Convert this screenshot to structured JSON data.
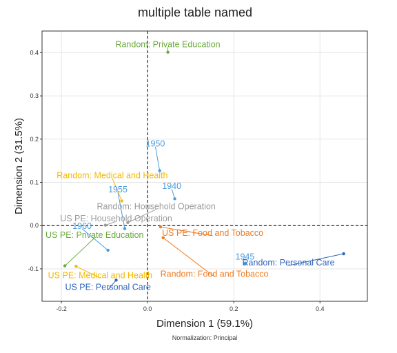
{
  "chart_data": {
    "type": "scatter",
    "title": "multiple table named",
    "xlabel": "Dimension 1 (59.1%)",
    "ylabel": "Dimension 2 (31.5%)",
    "note": "Normalization: Principal",
    "xlim": [
      -0.245,
      0.51
    ],
    "ylim": [
      -0.175,
      0.45
    ],
    "x_ticks": [
      {
        "value": -0.2,
        "label": "-0.2"
      },
      {
        "value": 0.0,
        "label": "0.0"
      },
      {
        "value": 0.2,
        "label": "0.2"
      },
      {
        "value": 0.4,
        "label": "0.4"
      }
    ],
    "y_ticks": [
      {
        "value": -0.1,
        "label": "-0.1"
      },
      {
        "value": 0.0,
        "label": "0.0"
      },
      {
        "value": 0.1,
        "label": "0.1"
      },
      {
        "value": 0.2,
        "label": "0.2"
      },
      {
        "value": 0.3,
        "label": "0.3"
      },
      {
        "value": 0.4,
        "label": "0.4"
      }
    ],
    "grid": true,
    "reference_lines": {
      "x": 0,
      "y": 0,
      "style": "dashed"
    },
    "points": [
      {
        "label": "Random: Private Education",
        "x": 0.047,
        "y": 0.401,
        "lx": 0.047,
        "ly": 0.419,
        "color": "#6aaa3a"
      },
      {
        "label": "1950",
        "x": 0.028,
        "y": 0.127,
        "lx": 0.018,
        "ly": 0.189,
        "color": "#4a9bdb"
      },
      {
        "label": "Random: Medical and Health",
        "x": -0.06,
        "y": 0.057,
        "lx": -0.082,
        "ly": 0.116,
        "color": "#f5b800"
      },
      {
        "label": "1940",
        "x": 0.063,
        "y": 0.062,
        "lx": 0.056,
        "ly": 0.091,
        "color": "#4a9bdb"
      },
      {
        "label": "1955",
        "x": -0.053,
        "y": -0.007,
        "lx": -0.069,
        "ly": 0.083,
        "color": "#4a9bdb"
      },
      {
        "label": "Random: Household Operation",
        "x": -0.046,
        "y": 0.007,
        "lx": 0.02,
        "ly": 0.044,
        "color": "#9b9b9b"
      },
      {
        "label": "US PE: Household Operation",
        "x": -0.098,
        "y": 0.001,
        "lx": -0.073,
        "ly": 0.016,
        "color": "#9b9b9b"
      },
      {
        "label": "1960",
        "x": -0.092,
        "y": -0.057,
        "lx": -0.152,
        "ly": -0.001,
        "color": "#4a9bdb"
      },
      {
        "label": "US PE: Food and Tobacco",
        "x": 0.03,
        "y": -0.003,
        "lx": 0.151,
        "ly": -0.017,
        "color": "#f07a1e"
      },
      {
        "label": "US PE: Private Education",
        "x": -0.192,
        "y": -0.093,
        "lx": -0.123,
        "ly": -0.022,
        "color": "#6aaa3a"
      },
      {
        "label": "Random: Food and Tobacco",
        "x": 0.036,
        "y": -0.028,
        "lx": 0.155,
        "ly": -0.112,
        "color": "#f07a1e"
      },
      {
        "label": "1945",
        "x": 0.226,
        "y": -0.089,
        "lx": 0.226,
        "ly": -0.072,
        "color": "#4a9bdb"
      },
      {
        "label": "Random: Personal Care",
        "x": 0.455,
        "y": -0.065,
        "lx": 0.327,
        "ly": -0.086,
        "color": "#2e64b9"
      },
      {
        "label": "US PE: Medical and Health",
        "x": -0.166,
        "y": -0.094,
        "lx": -0.11,
        "ly": -0.115,
        "color": "#f5b800"
      },
      {
        "label": "US PE: Personal Care",
        "x": -0.073,
        "y": -0.126,
        "lx": -0.092,
        "ly": -0.142,
        "color": "#2e64b9"
      }
    ]
  }
}
